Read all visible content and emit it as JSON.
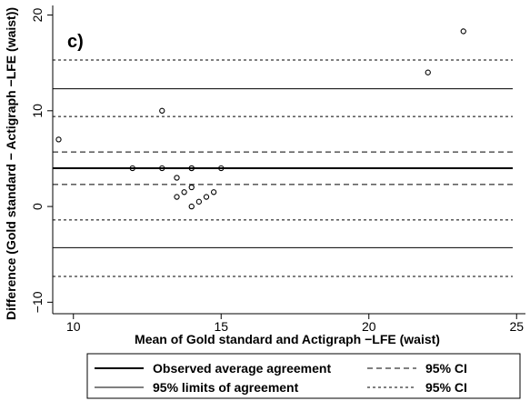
{
  "chart_data": {
    "type": "scatter",
    "panel_label": "c)",
    "xlabel": "Mean of Gold standard and Actigraph −LFE (waist)",
    "ylabel": "Difference (Gold standard − Actigraph −LFE (waist))",
    "xlim": [
      9.3,
      25.3
    ],
    "ylim": [
      -11.2,
      21.0
    ],
    "x_ticks": [
      10,
      15,
      20,
      25
    ],
    "y_ticks": [
      -10,
      0,
      10,
      20
    ],
    "grid": false,
    "legend_position": "bottom",
    "points": [
      {
        "x": 9.5,
        "y": 7.0
      },
      {
        "x": 12.0,
        "y": 4.0
      },
      {
        "x": 13.0,
        "y": 4.0
      },
      {
        "x": 13.0,
        "y": 10.0
      },
      {
        "x": 13.5,
        "y": 3.0
      },
      {
        "x": 13.5,
        "y": 1.0
      },
      {
        "x": 13.75,
        "y": 1.5
      },
      {
        "x": 14.0,
        "y": 4.0
      },
      {
        "x": 14.0,
        "y": 4.0
      },
      {
        "x": 14.0,
        "y": 2.0
      },
      {
        "x": 14.0,
        "y": 0.0
      },
      {
        "x": 14.25,
        "y": 0.5
      },
      {
        "x": 14.5,
        "y": 1.0
      },
      {
        "x": 14.75,
        "y": 1.5
      },
      {
        "x": 15.0,
        "y": 4.0
      },
      {
        "x": 22.0,
        "y": 14.0
      },
      {
        "x": 23.2,
        "y": 18.3
      }
    ],
    "reference_lines": [
      {
        "name": "Observed average agreement",
        "style": "thick-solid",
        "y": 4.0
      },
      {
        "name": "95% CI",
        "style": "dashed",
        "y": 2.3
      },
      {
        "name": "95% CI",
        "style": "dashed",
        "y": 5.7
      },
      {
        "name": "95% limits of agreement",
        "style": "thin-solid",
        "y": 12.3
      },
      {
        "name": "95% limits of agreement",
        "style": "thin-solid",
        "y": -4.3
      },
      {
        "name": "95% CI",
        "style": "dotted",
        "y": 15.3
      },
      {
        "name": "95% CI",
        "style": "dotted",
        "y": 9.4
      },
      {
        "name": "95% CI",
        "style": "dotted",
        "y": -1.4
      },
      {
        "name": "95% CI",
        "style": "dotted",
        "y": -7.3
      }
    ],
    "legend": [
      {
        "label": "Observed average agreement",
        "style": "thick-solid"
      },
      {
        "label": "95% CI",
        "style": "dashed"
      },
      {
        "label": "95% limits of agreement",
        "style": "thin-solid"
      },
      {
        "label": "95% CI",
        "style": "dotted"
      }
    ]
  }
}
